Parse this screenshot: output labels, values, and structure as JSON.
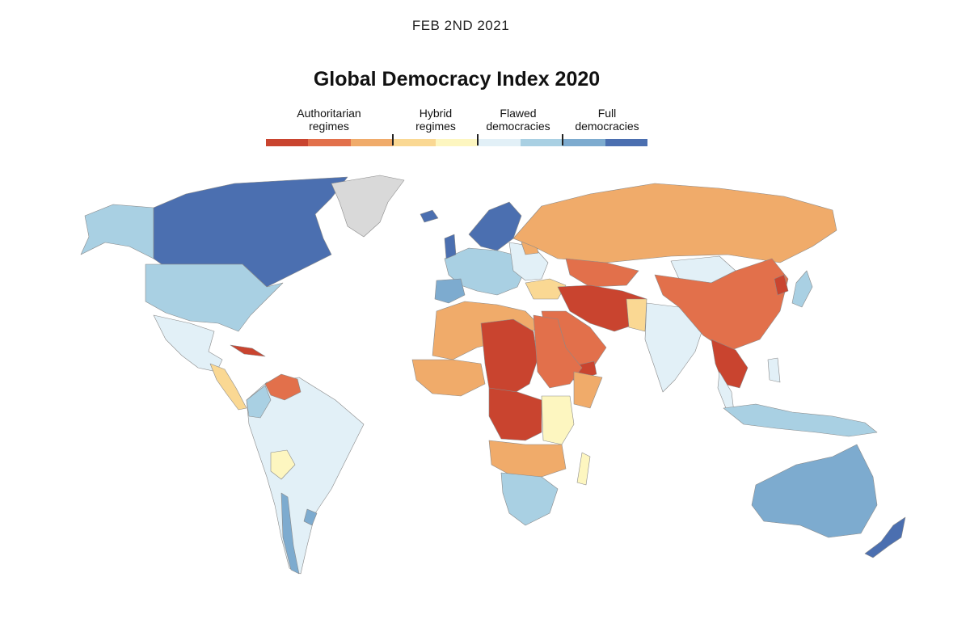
{
  "header": {
    "date": "FEB 2ND 2021",
    "title": "Global Democracy Index 2020"
  },
  "legend": {
    "categories": [
      {
        "label_line1": "Authoritarian",
        "label_line2": "regimes"
      },
      {
        "label_line1": "Hybrid",
        "label_line2": "regimes"
      },
      {
        "label_line1": "Flawed",
        "label_line2": "democracies"
      },
      {
        "label_line1": "Full",
        "label_line2": "democracies"
      }
    ],
    "colors": [
      "#c9442f",
      "#e2704b",
      "#f0ab6a",
      "#fad893",
      "#fdf6c0",
      "#e2f0f7",
      "#a9d0e3",
      "#7dabcf",
      "#4b6fb0"
    ],
    "no_data_color": "#d9d9d9"
  }
}
